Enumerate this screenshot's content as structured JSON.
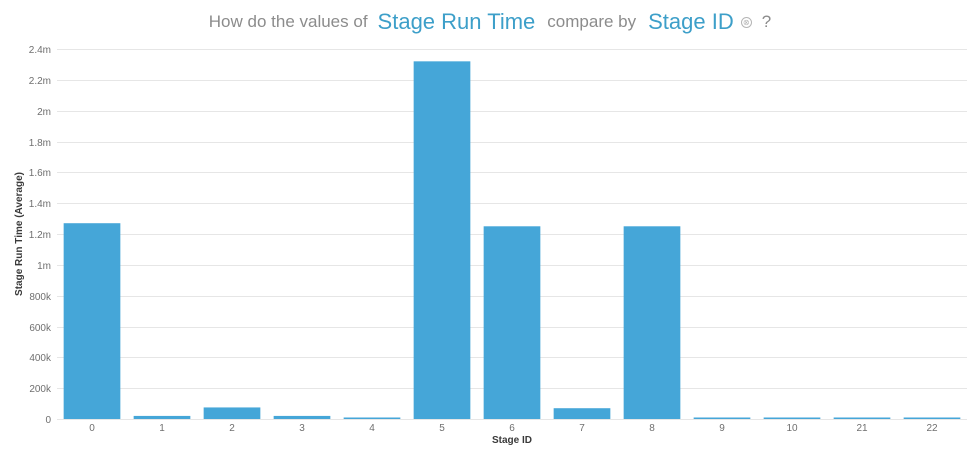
{
  "question": {
    "prefix": "How do the values of",
    "measure": "Stage Run Time",
    "middle": "compare by",
    "dimension": "Stage ID",
    "clear_icon": "⊗",
    "suffix": "?"
  },
  "colors": {
    "bar": "#45a6d8",
    "field_text": "#3d9fc9"
  },
  "chart_data": {
    "type": "bar",
    "categories": [
      "0",
      "1",
      "2",
      "3",
      "4",
      "5",
      "6",
      "7",
      "8",
      "9",
      "10",
      "21",
      "22"
    ],
    "values": [
      1270000,
      20000,
      75000,
      20000,
      5000,
      2320000,
      1250000,
      70000,
      1250000,
      3000,
      3000,
      5000,
      3000
    ],
    "xlabel": "Stage ID",
    "ylabel": "Stage Run Time (Average)",
    "ylim": [
      0,
      2400000
    ],
    "yticks": [
      0,
      200000,
      400000,
      600000,
      800000,
      1000000,
      1200000,
      1400000,
      1600000,
      1800000,
      2000000,
      2200000,
      2400000
    ],
    "ytick_labels": [
      "0",
      "200k",
      "400k",
      "600k",
      "800k",
      "1m",
      "1.2m",
      "1.4m",
      "1.6m",
      "1.8m",
      "2m",
      "2.2m",
      "2.4m"
    ],
    "grid": true
  }
}
